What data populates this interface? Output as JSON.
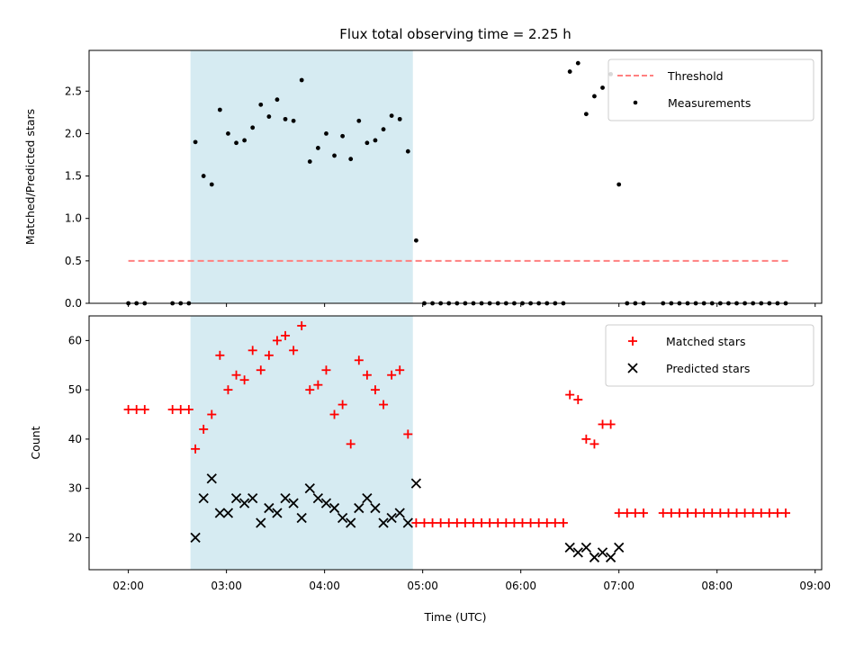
{
  "chart_data": [
    {
      "type": "scatter",
      "title": "Flux total observing time = 2.25 h",
      "xlabel": "",
      "ylabel": "Matched/Predicted stars",
      "ylim": [
        0,
        2.98
      ],
      "yticks": [
        "0.0",
        "0.5",
        "1.0",
        "1.5",
        "2.0",
        "2.5"
      ],
      "x_is_time": true,
      "highlight_span": [
        "02:38",
        "04:54"
      ],
      "grid": false,
      "legend_position": "top-right",
      "legend": [
        "Threshold",
        "Measurements"
      ],
      "threshold": {
        "name": "Threshold",
        "y": 0.5,
        "x_range": [
          "02:00",
          "08:45"
        ],
        "color": "#ff8080"
      },
      "series": [
        {
          "name": "Measurements",
          "marker": "dot",
          "color": "#000000",
          "points": [
            [
              "02:00",
              0
            ],
            [
              "02:05",
              0
            ],
            [
              "02:10",
              0
            ],
            [
              "02:27",
              0
            ],
            [
              "02:32",
              0
            ],
            [
              "02:37",
              0
            ],
            [
              "02:41",
              1.9
            ],
            [
              "02:46",
              1.5
            ],
            [
              "02:51",
              1.4
            ],
            [
              "02:56",
              2.28
            ],
            [
              "03:01",
              2.0
            ],
            [
              "03:06",
              1.89
            ],
            [
              "03:11",
              1.92
            ],
            [
              "03:16",
              2.07
            ],
            [
              "03:21",
              2.34
            ],
            [
              "03:26",
              2.2
            ],
            [
              "03:31",
              2.4
            ],
            [
              "03:36",
              2.17
            ],
            [
              "03:41",
              2.15
            ],
            [
              "03:46",
              2.63
            ],
            [
              "03:51",
              1.67
            ],
            [
              "03:56",
              1.83
            ],
            [
              "04:01",
              2.0
            ],
            [
              "04:06",
              1.74
            ],
            [
              "04:11",
              1.97
            ],
            [
              "04:16",
              1.7
            ],
            [
              "04:21",
              2.15
            ],
            [
              "04:26",
              1.89
            ],
            [
              "04:31",
              1.92
            ],
            [
              "04:36",
              2.05
            ],
            [
              "04:41",
              2.21
            ],
            [
              "04:46",
              2.17
            ],
            [
              "04:51",
              1.79
            ],
            [
              "04:56",
              0.74
            ],
            [
              "05:01",
              0
            ],
            [
              "05:06",
              0
            ],
            [
              "05:11",
              0
            ],
            [
              "05:16",
              0
            ],
            [
              "05:21",
              0
            ],
            [
              "05:26",
              0
            ],
            [
              "05:31",
              0
            ],
            [
              "05:36",
              0
            ],
            [
              "05:41",
              0
            ],
            [
              "05:46",
              0
            ],
            [
              "05:51",
              0
            ],
            [
              "05:56",
              0
            ],
            [
              "06:01",
              0
            ],
            [
              "06:06",
              0
            ],
            [
              "06:11",
              0
            ],
            [
              "06:16",
              0
            ],
            [
              "06:21",
              0
            ],
            [
              "06:26",
              0
            ],
            [
              "06:30",
              2.73
            ],
            [
              "06:35",
              2.83
            ],
            [
              "06:40",
              2.23
            ],
            [
              "06:45",
              2.44
            ],
            [
              "06:50",
              2.54
            ],
            [
              "06:55",
              2.7
            ],
            [
              "07:00",
              1.4
            ],
            [
              "07:05",
              0
            ],
            [
              "07:10",
              0
            ],
            [
              "07:15",
              0
            ],
            [
              "07:27",
              0
            ],
            [
              "07:32",
              0
            ],
            [
              "07:37",
              0
            ],
            [
              "07:42",
              0
            ],
            [
              "07:47",
              0
            ],
            [
              "07:52",
              0
            ],
            [
              "07:57",
              0
            ],
            [
              "08:02",
              0
            ],
            [
              "08:07",
              0
            ],
            [
              "08:12",
              0
            ],
            [
              "08:17",
              0
            ],
            [
              "08:22",
              0
            ],
            [
              "08:27",
              0
            ],
            [
              "08:32",
              0
            ],
            [
              "08:37",
              0
            ],
            [
              "08:42",
              0
            ]
          ]
        }
      ]
    },
    {
      "type": "scatter",
      "title": "",
      "xlabel": "Time (UTC)",
      "ylabel": "Count",
      "ylim": [
        13.5,
        65
      ],
      "yticks": [
        "20",
        "30",
        "40",
        "50",
        "60"
      ],
      "xticks": [
        "02:00",
        "03:00",
        "04:00",
        "05:00",
        "06:00",
        "07:00",
        "08:00",
        "09:00"
      ],
      "xlim": [
        "01:36",
        "09:04"
      ],
      "x_is_time": true,
      "highlight_span": [
        "02:38",
        "04:54"
      ],
      "grid": false,
      "legend_position": "top-right",
      "legend": [
        "Matched stars",
        "Predicted stars"
      ],
      "series": [
        {
          "name": "Matched stars",
          "marker": "plus",
          "color": "#ff0000",
          "points": [
            [
              "02:00",
              46
            ],
            [
              "02:05",
              46
            ],
            [
              "02:10",
              46
            ],
            [
              "02:27",
              46
            ],
            [
              "02:32",
              46
            ],
            [
              "02:37",
              46
            ],
            [
              "02:41",
              38
            ],
            [
              "02:46",
              42
            ],
            [
              "02:51",
              45
            ],
            [
              "02:56",
              57
            ],
            [
              "03:01",
              50
            ],
            [
              "03:06",
              53
            ],
            [
              "03:11",
              52
            ],
            [
              "03:16",
              58
            ],
            [
              "03:21",
              54
            ],
            [
              "03:26",
              57
            ],
            [
              "03:31",
              60
            ],
            [
              "03:36",
              61
            ],
            [
              "03:41",
              58
            ],
            [
              "03:46",
              63
            ],
            [
              "03:51",
              50
            ],
            [
              "03:56",
              51
            ],
            [
              "04:01",
              54
            ],
            [
              "04:06",
              45
            ],
            [
              "04:11",
              47
            ],
            [
              "04:16",
              39
            ],
            [
              "04:21",
              56
            ],
            [
              "04:26",
              53
            ],
            [
              "04:31",
              50
            ],
            [
              "04:36",
              47
            ],
            [
              "04:41",
              53
            ],
            [
              "04:46",
              54
            ],
            [
              "04:51",
              41
            ],
            [
              "04:56",
              23
            ],
            [
              "05:01",
              23
            ],
            [
              "05:06",
              23
            ],
            [
              "05:11",
              23
            ],
            [
              "05:16",
              23
            ],
            [
              "05:21",
              23
            ],
            [
              "05:26",
              23
            ],
            [
              "05:31",
              23
            ],
            [
              "05:36",
              23
            ],
            [
              "05:41",
              23
            ],
            [
              "05:46",
              23
            ],
            [
              "05:51",
              23
            ],
            [
              "05:56",
              23
            ],
            [
              "06:01",
              23
            ],
            [
              "06:06",
              23
            ],
            [
              "06:11",
              23
            ],
            [
              "06:16",
              23
            ],
            [
              "06:21",
              23
            ],
            [
              "06:26",
              23
            ],
            [
              "06:30",
              49
            ],
            [
              "06:35",
              48
            ],
            [
              "06:40",
              40
            ],
            [
              "06:45",
              39
            ],
            [
              "06:50",
              43
            ],
            [
              "06:55",
              43
            ],
            [
              "07:00",
              25
            ],
            [
              "07:05",
              25
            ],
            [
              "07:10",
              25
            ],
            [
              "07:15",
              25
            ],
            [
              "07:27",
              25
            ],
            [
              "07:32",
              25
            ],
            [
              "07:37",
              25
            ],
            [
              "07:42",
              25
            ],
            [
              "07:47",
              25
            ],
            [
              "07:52",
              25
            ],
            [
              "07:57",
              25
            ],
            [
              "08:02",
              25
            ],
            [
              "08:07",
              25
            ],
            [
              "08:12",
              25
            ],
            [
              "08:17",
              25
            ],
            [
              "08:22",
              25
            ],
            [
              "08:27",
              25
            ],
            [
              "08:32",
              25
            ],
            [
              "08:37",
              25
            ],
            [
              "08:42",
              25
            ]
          ]
        },
        {
          "name": "Predicted stars",
          "marker": "x",
          "color": "#000000",
          "points": [
            [
              "02:41",
              20
            ],
            [
              "02:46",
              28
            ],
            [
              "02:51",
              32
            ],
            [
              "02:56",
              25
            ],
            [
              "03:01",
              25
            ],
            [
              "03:06",
              28
            ],
            [
              "03:11",
              27
            ],
            [
              "03:16",
              28
            ],
            [
              "03:21",
              23
            ],
            [
              "03:26",
              26
            ],
            [
              "03:31",
              25
            ],
            [
              "03:36",
              28
            ],
            [
              "03:41",
              27
            ],
            [
              "03:46",
              24
            ],
            [
              "03:51",
              30
            ],
            [
              "03:56",
              28
            ],
            [
              "04:01",
              27
            ],
            [
              "04:06",
              26
            ],
            [
              "04:11",
              24
            ],
            [
              "04:16",
              23
            ],
            [
              "04:21",
              26
            ],
            [
              "04:26",
              28
            ],
            [
              "04:31",
              26
            ],
            [
              "04:36",
              23
            ],
            [
              "04:41",
              24
            ],
            [
              "04:46",
              25
            ],
            [
              "04:51",
              23
            ],
            [
              "04:56",
              31
            ],
            [
              "06:30",
              18
            ],
            [
              "06:35",
              17
            ],
            [
              "06:40",
              18
            ],
            [
              "06:45",
              16
            ],
            [
              "06:50",
              17
            ],
            [
              "06:55",
              16
            ],
            [
              "07:00",
              18
            ]
          ]
        }
      ]
    }
  ]
}
